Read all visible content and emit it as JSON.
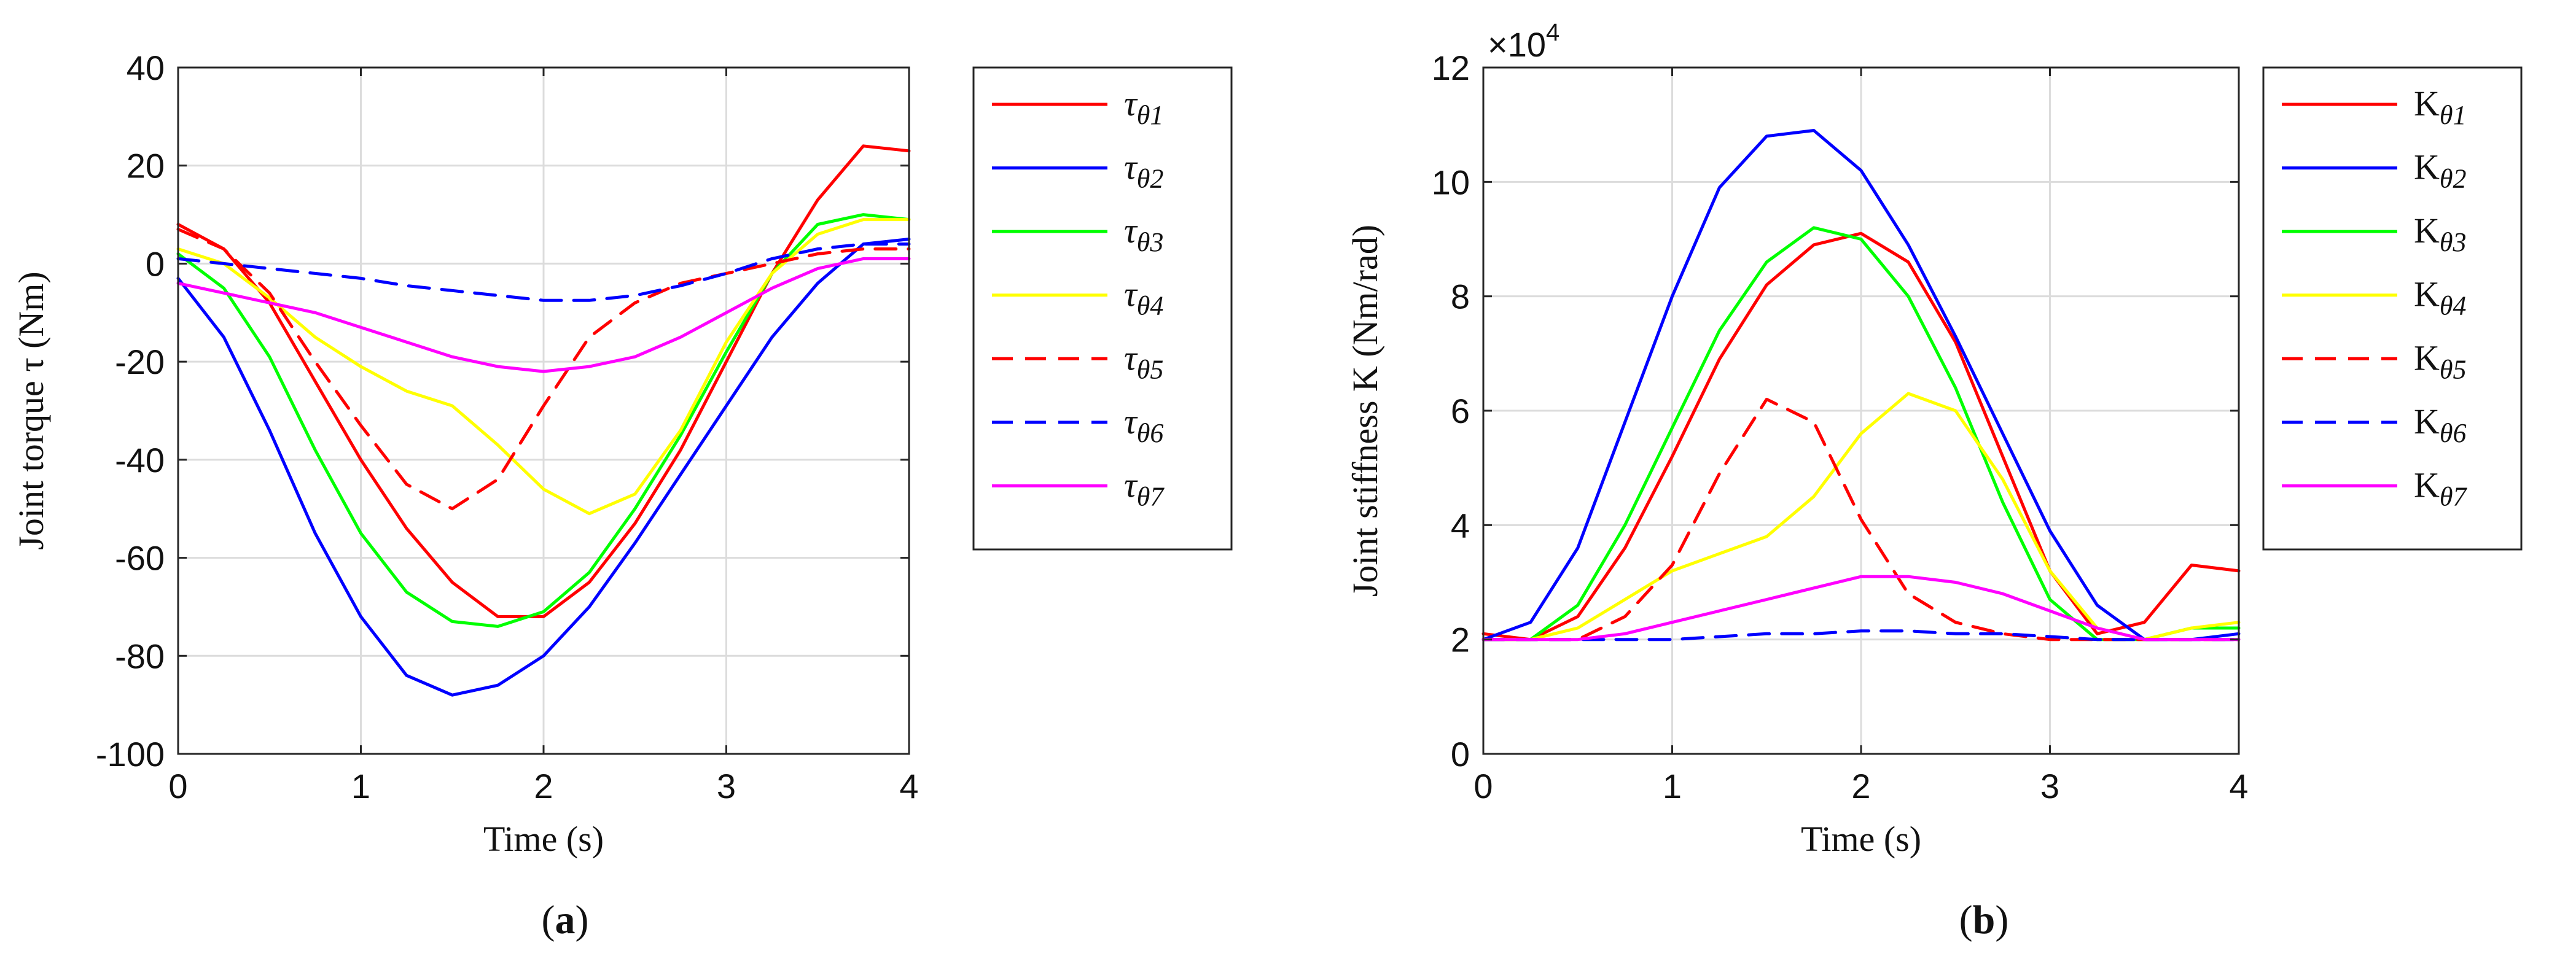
{
  "chart_data": [
    {
      "type": "line",
      "panel_label": "(a)",
      "panel_letter": "a",
      "xlabel": "Time (s)",
      "ylabel": "Joint torque τ (Nm)",
      "xlim": [
        0,
        4
      ],
      "ylim": [
        -100,
        40
      ],
      "xticks": [
        0,
        1,
        2,
        3,
        4
      ],
      "yticks": [
        -100,
        -80,
        -60,
        -40,
        -20,
        0,
        20,
        40
      ],
      "grid": true,
      "legend_position": "outside-right",
      "x": [
        0,
        0.25,
        0.5,
        0.75,
        1,
        1.25,
        1.5,
        1.75,
        2,
        2.25,
        2.5,
        2.75,
        3,
        3.25,
        3.5,
        3.75,
        4
      ],
      "series": [
        {
          "name": "τθ1",
          "symbol": "τ",
          "sub": "θ1",
          "color": "#ff0000",
          "dash": "solid",
          "values": [
            8,
            3,
            -8,
            -24,
            -40,
            -54,
            -65,
            -72,
            -72,
            -65,
            -53,
            -38,
            -20,
            -2,
            13,
            24,
            23
          ]
        },
        {
          "name": "τθ2",
          "symbol": "τ",
          "sub": "θ2",
          "color": "#0000ff",
          "dash": "solid",
          "values": [
            -3,
            -15,
            -34,
            -55,
            -72,
            -84,
            -88,
            -86,
            -80,
            -70,
            -57,
            -43,
            -29,
            -15,
            -4,
            4,
            5
          ]
        },
        {
          "name": "τθ3",
          "symbol": "τ",
          "sub": "θ3",
          "color": "#00ff00",
          "dash": "solid",
          "values": [
            2,
            -5,
            -19,
            -38,
            -55,
            -67,
            -73,
            -74,
            -71,
            -63,
            -50,
            -35,
            -18,
            -2,
            8,
            10,
            9
          ]
        },
        {
          "name": "τθ4",
          "symbol": "τ",
          "sub": "θ4",
          "color": "#ffff00",
          "dash": "solid",
          "values": [
            3,
            0,
            -7,
            -15,
            -21,
            -26,
            -29,
            -37,
            -46,
            -51,
            -47,
            -34,
            -16,
            -2,
            6,
            9,
            9
          ]
        },
        {
          "name": "τθ5",
          "symbol": "τ",
          "sub": "θ5",
          "color": "#ff0000",
          "dash": "dashed",
          "values": [
            7,
            3,
            -6,
            -20,
            -33,
            -45,
            -50,
            -44,
            -29,
            -15,
            -8,
            -4,
            -2,
            0,
            2,
            3,
            3
          ]
        },
        {
          "name": "τθ6",
          "symbol": "τ",
          "sub": "θ6",
          "color": "#0000ff",
          "dash": "dashed",
          "values": [
            1,
            0,
            -1,
            -2,
            -3,
            -4.5,
            -5.5,
            -6.5,
            -7.5,
            -7.5,
            -6.5,
            -4.5,
            -2,
            1,
            3,
            4,
            4
          ]
        },
        {
          "name": "τθ7",
          "symbol": "τ",
          "sub": "θ7",
          "color": "#ff00ff",
          "dash": "solid",
          "values": [
            -4,
            -6,
            -8,
            -10,
            -13,
            -16,
            -19,
            -21,
            -22,
            -21,
            -19,
            -15,
            -10,
            -5,
            -1,
            1,
            1
          ]
        }
      ]
    },
    {
      "type": "line",
      "panel_label": "(b)",
      "panel_letter": "b",
      "xlabel": "Time (s)",
      "ylabel": "Joint stiffness K (Nm/rad)",
      "exponent_label": "×10",
      "exponent_power": "4",
      "xlim": [
        0,
        4
      ],
      "ylim": [
        0,
        12
      ],
      "xticks": [
        0,
        1,
        2,
        3,
        4
      ],
      "yticks": [
        0,
        2,
        4,
        6,
        8,
        10,
        12
      ],
      "grid": true,
      "legend_position": "outside-right",
      "x": [
        0,
        0.25,
        0.5,
        0.75,
        1,
        1.25,
        1.5,
        1.75,
        2,
        2.25,
        2.5,
        2.75,
        3,
        3.25,
        3.5,
        3.75,
        4
      ],
      "series": [
        {
          "name": "Kθ1",
          "symbol": "K",
          "sub": "θ1",
          "color": "#ff0000",
          "dash": "solid",
          "values": [
            2.1,
            2.0,
            2.4,
            3.6,
            5.2,
            6.9,
            8.2,
            8.9,
            9.1,
            8.6,
            7.2,
            5.2,
            3.2,
            2.1,
            2.3,
            3.3,
            3.2
          ]
        },
        {
          "name": "Kθ2",
          "symbol": "K",
          "sub": "θ2",
          "color": "#0000ff",
          "dash": "solid",
          "values": [
            2.0,
            2.3,
            3.6,
            5.8,
            8.0,
            9.9,
            10.8,
            10.9,
            10.2,
            8.9,
            7.3,
            5.6,
            3.9,
            2.6,
            2.0,
            2.0,
            2.1
          ]
        },
        {
          "name": "Kθ3",
          "symbol": "K",
          "sub": "θ3",
          "color": "#00ff00",
          "dash": "solid",
          "values": [
            2.0,
            2.0,
            2.6,
            4.0,
            5.7,
            7.4,
            8.6,
            9.2,
            9.0,
            8.0,
            6.4,
            4.4,
            2.7,
            2.0,
            2.0,
            2.2,
            2.2
          ]
        },
        {
          "name": "Kθ4",
          "symbol": "K",
          "sub": "θ4",
          "color": "#ffff00",
          "dash": "solid",
          "values": [
            2.0,
            2.0,
            2.2,
            2.7,
            3.2,
            3.5,
            3.8,
            4.5,
            5.6,
            6.3,
            6.0,
            4.8,
            3.2,
            2.2,
            2.0,
            2.2,
            2.3
          ]
        },
        {
          "name": "Kθ5",
          "symbol": "K",
          "sub": "θ5",
          "color": "#ff0000",
          "dash": "dashed",
          "values": [
            2.0,
            2.0,
            2.0,
            2.4,
            3.3,
            4.9,
            6.2,
            5.8,
            4.1,
            2.8,
            2.3,
            2.1,
            2.0,
            2.0,
            2.0,
            2.0,
            2.0
          ]
        },
        {
          "name": "Kθ6",
          "symbol": "K",
          "sub": "θ6",
          "color": "#0000ff",
          "dash": "dashed",
          "values": [
            2.0,
            2.0,
            2.0,
            2.0,
            2.0,
            2.05,
            2.1,
            2.1,
            2.15,
            2.15,
            2.1,
            2.1,
            2.05,
            2.0,
            2.0,
            2.0,
            2.0
          ]
        },
        {
          "name": "Kθ7",
          "symbol": "K",
          "sub": "θ7",
          "color": "#ff00ff",
          "dash": "solid",
          "values": [
            2.0,
            2.0,
            2.0,
            2.1,
            2.3,
            2.5,
            2.7,
            2.9,
            3.1,
            3.1,
            3.0,
            2.8,
            2.5,
            2.2,
            2.0,
            2.0,
            2.0
          ]
        }
      ]
    }
  ]
}
